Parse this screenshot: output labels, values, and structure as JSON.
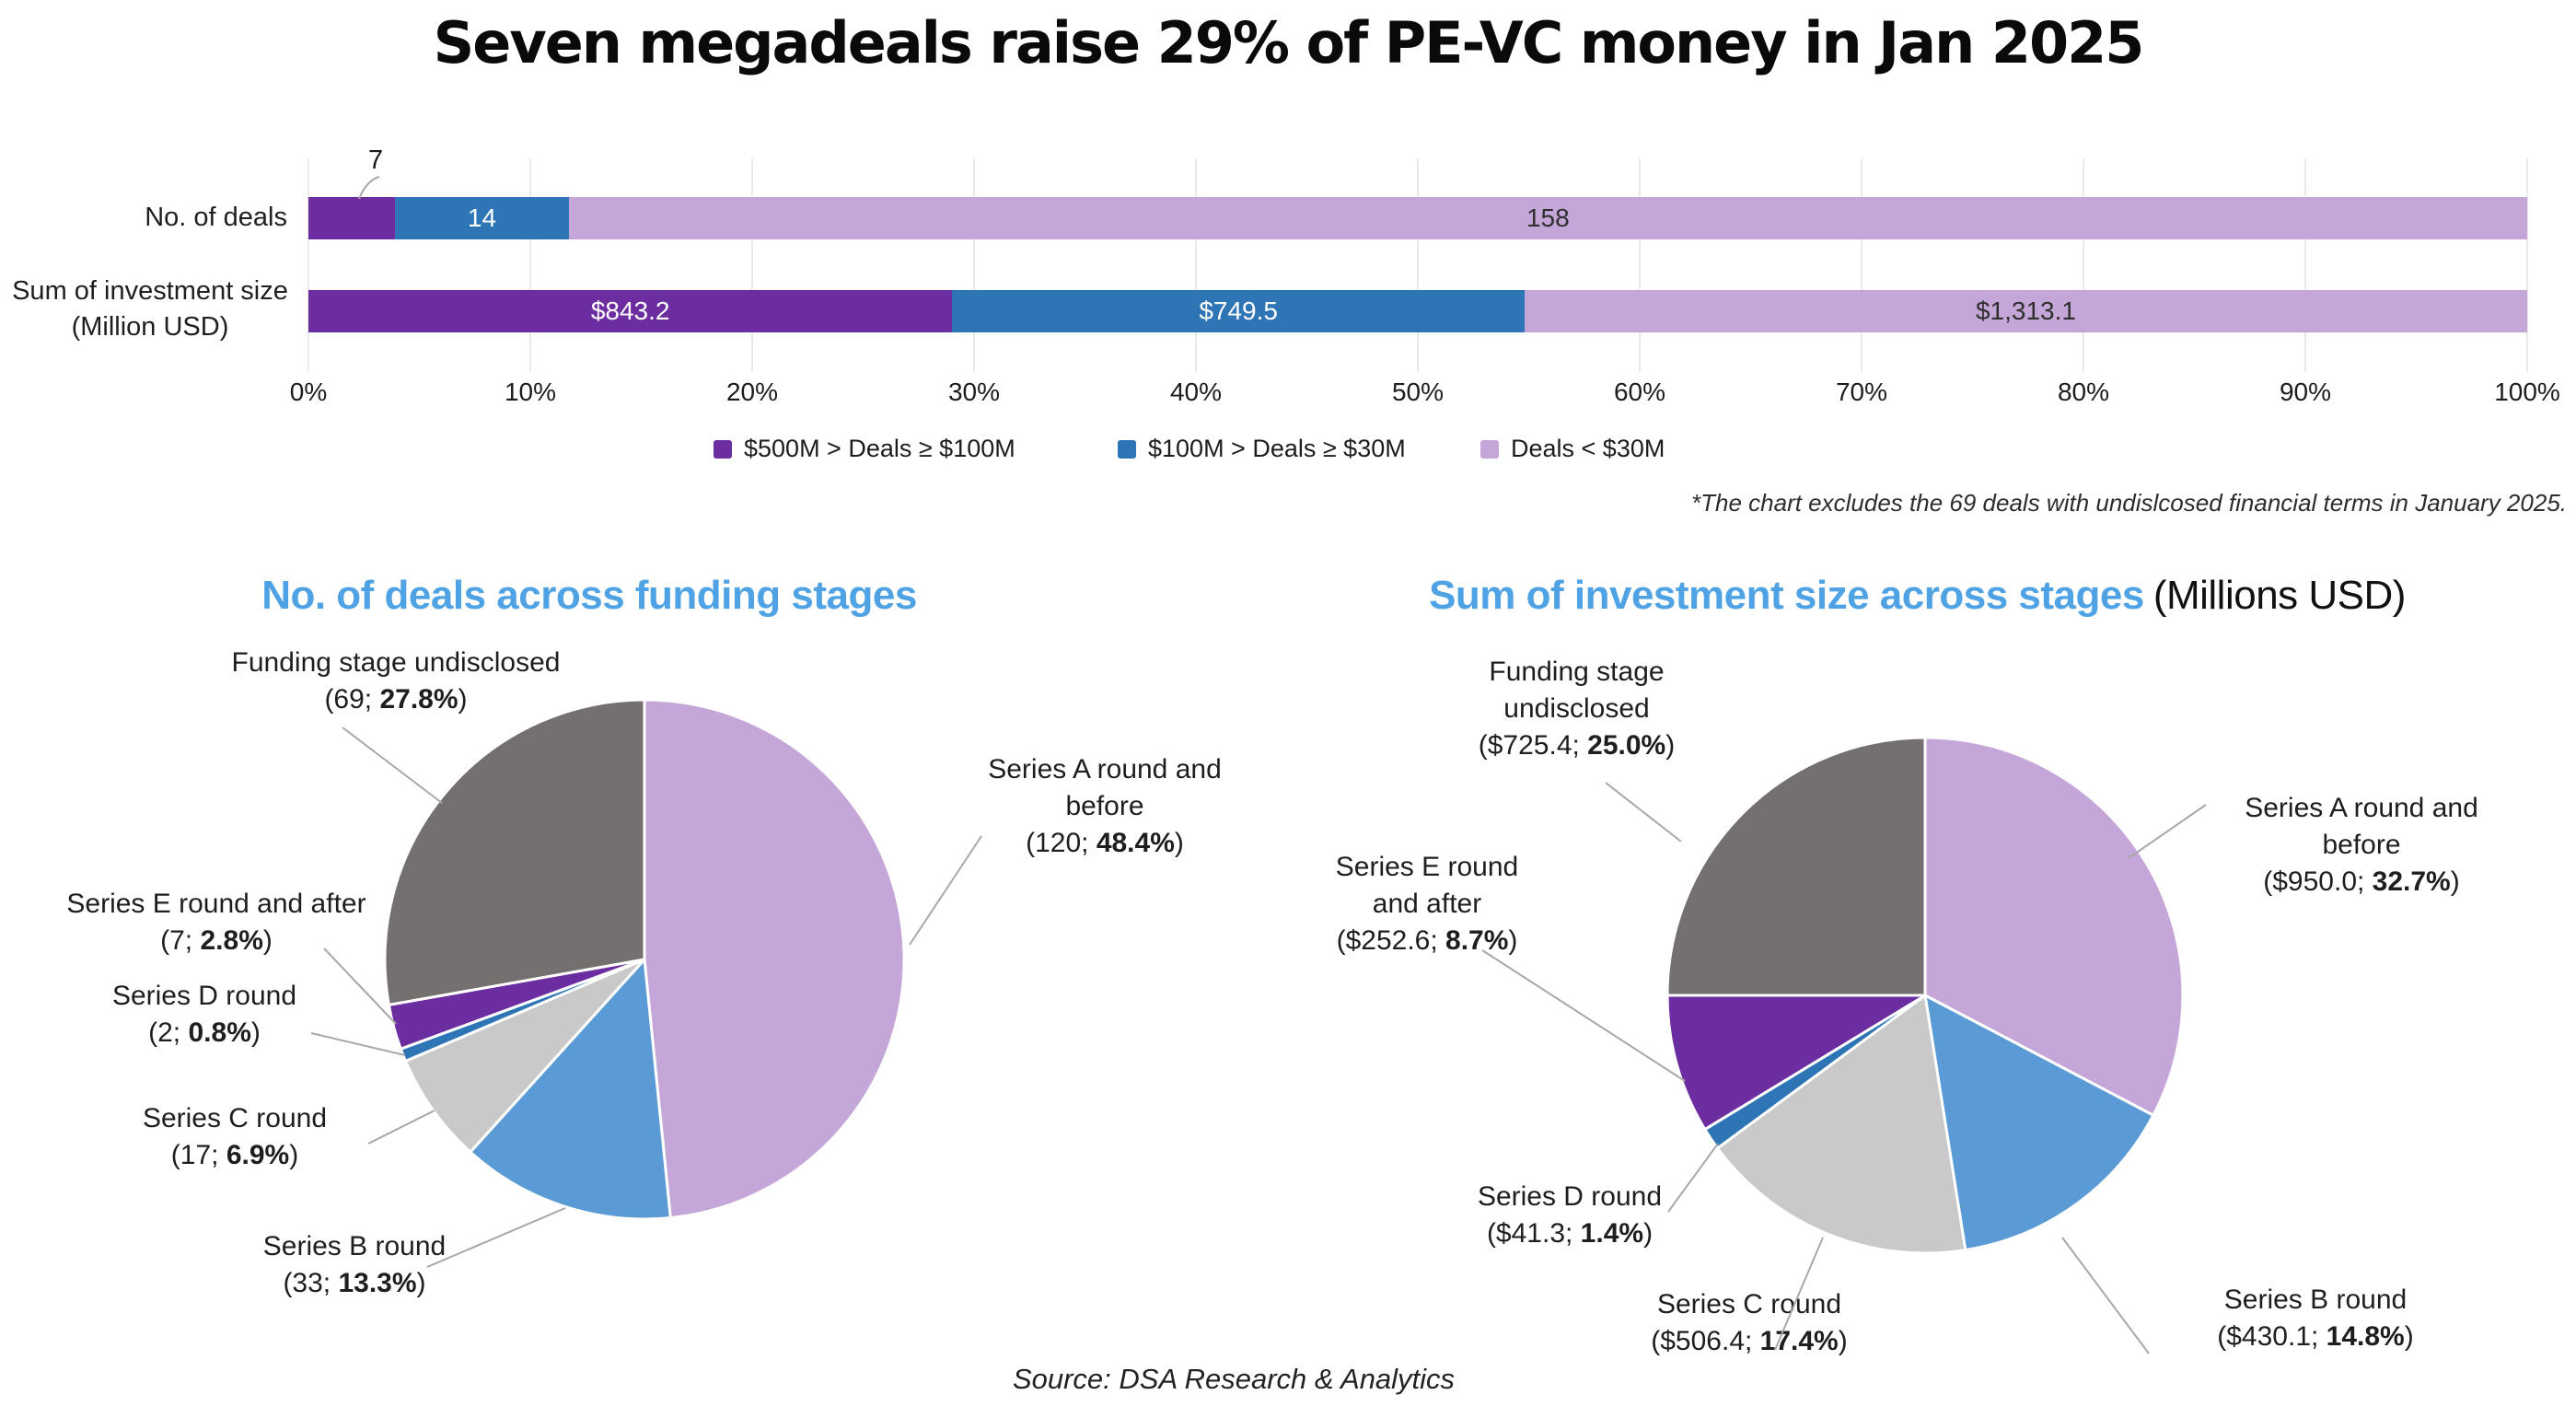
{
  "header": {
    "title": "Seven megadeals raise 29% of PE-VC money in Jan 2025"
  },
  "footnote": "*The chart excludes the 69 deals with undislcosed financial terms in January 2025.",
  "source": "Source: DSA Research & Analytics",
  "chart_data": [
    {
      "type": "bar",
      "variant": "100%-stacked-horizontal",
      "categories": [
        "No. of deals",
        "Sum of investment size (Million USD)"
      ],
      "category_lines": [
        [
          "No. of deals"
        ],
        [
          "Sum of investment size",
          "(Million USD)"
        ]
      ],
      "x_ticks": [
        "0%",
        "10%",
        "20%",
        "30%",
        "40%",
        "50%",
        "60%",
        "70%",
        "80%",
        "90%",
        "100%"
      ],
      "xlim": [
        0,
        100
      ],
      "grid": true,
      "legend_position": "bottom",
      "series": [
        {
          "name": "$500M > Deals ≥ $100M",
          "color": "#6C2DA0",
          "values": [
            7,
            843.2
          ],
          "value_labels": [
            "7",
            "$843.2"
          ],
          "label_placement": [
            "callout",
            "inside"
          ]
        },
        {
          "name": "$100M > Deals ≥ $30M",
          "color": "#2E75B6",
          "values": [
            14,
            749.5
          ],
          "value_labels": [
            "14",
            "$749.5"
          ],
          "label_placement": [
            "inside",
            "inside"
          ]
        },
        {
          "name": "Deals < $30M",
          "color": "#C4A6D8",
          "values": [
            158,
            1313.1
          ],
          "value_labels": [
            "158",
            "$1,313.1"
          ],
          "label_placement": [
            "inside-dark",
            "inside-dark"
          ]
        }
      ]
    },
    {
      "type": "pie",
      "title": "No. of deals across funding stages",
      "unit": "deals",
      "start_angle": 0,
      "direction": "clockwise",
      "slices": [
        {
          "name": "Series A round and before",
          "value": 120,
          "pct": 48.4,
          "color": "#C4A6D8",
          "label_lines": [
            "Series A round and",
            "before"
          ],
          "value_pre": "(120; ",
          "value_pct": "48.4%",
          "value_post": ")"
        },
        {
          "name": "Series B round",
          "value": 33,
          "pct": 13.3,
          "color": "#5B9BD5",
          "label_lines": [
            "Series B round"
          ],
          "value_pre": "(33; ",
          "value_pct": "13.3%",
          "value_post": ")"
        },
        {
          "name": "Series C round",
          "value": 17,
          "pct": 6.9,
          "color": "#C9C9C9",
          "label_lines": [
            "Series C round"
          ],
          "value_pre": "(17; ",
          "value_pct": "6.9%",
          "value_post": ")"
        },
        {
          "name": "Series D round",
          "value": 2,
          "pct": 0.8,
          "color": "#2E75B6",
          "label_lines": [
            "Series D round"
          ],
          "value_pre": "(2; ",
          "value_pct": "0.8%",
          "value_post": ")"
        },
        {
          "name": "Series E round and after",
          "value": 7,
          "pct": 2.8,
          "color": "#6C2DA0",
          "label_lines": [
            "Series E round and after"
          ],
          "value_pre": "(7; ",
          "value_pct": "2.8%",
          "value_post": ")"
        },
        {
          "name": "Funding stage undisclosed",
          "value": 69,
          "pct": 27.8,
          "color": "#757070",
          "label_lines": [
            "Funding stage undisclosed"
          ],
          "value_pre": "(69; ",
          "value_pct": "27.8%",
          "value_post": ")"
        }
      ]
    },
    {
      "type": "pie",
      "title": "Sum of investment size across stages",
      "title_suffix": "(Millions USD)",
      "unit": "million USD",
      "start_angle": 0,
      "direction": "clockwise",
      "slices": [
        {
          "name": "Series A round and before",
          "value": 950.0,
          "pct": 32.7,
          "color": "#C4A6D8",
          "label_lines": [
            "Series A round and",
            "before"
          ],
          "value_pre": "($950.0; ",
          "value_pct": "32.7%",
          "value_post": ")"
        },
        {
          "name": "Series B round",
          "value": 430.1,
          "pct": 14.8,
          "color": "#5B9BD5",
          "label_lines": [
            "Series B round"
          ],
          "value_pre": "($430.1; ",
          "value_pct": "14.8%",
          "value_post": ")"
        },
        {
          "name": "Series C round",
          "value": 506.4,
          "pct": 17.4,
          "color": "#C9C9C9",
          "label_lines": [
            "Series C round"
          ],
          "value_pre": "($506.4; ",
          "value_pct": "17.4%",
          "value_post": ")"
        },
        {
          "name": "Series D round",
          "value": 41.3,
          "pct": 1.4,
          "color": "#2E75B6",
          "label_lines": [
            "Series D round"
          ],
          "value_pre": "($41.3; ",
          "value_pct": "1.4%",
          "value_post": ")"
        },
        {
          "name": "Series E round and after",
          "value": 252.6,
          "pct": 8.7,
          "color": "#6C2DA0",
          "label_lines": [
            "Series E round",
            "and after"
          ],
          "value_pre": "($252.6; ",
          "value_pct": "8.7%",
          "value_post": ")"
        },
        {
          "name": "Funding stage undisclosed",
          "value": 725.4,
          "pct": 25.0,
          "color": "#757070",
          "label_lines": [
            "Funding stage",
            "undisclosed"
          ],
          "value_pre": "($725.4; ",
          "value_pct": "25.0%",
          "value_post": ")"
        }
      ]
    }
  ]
}
